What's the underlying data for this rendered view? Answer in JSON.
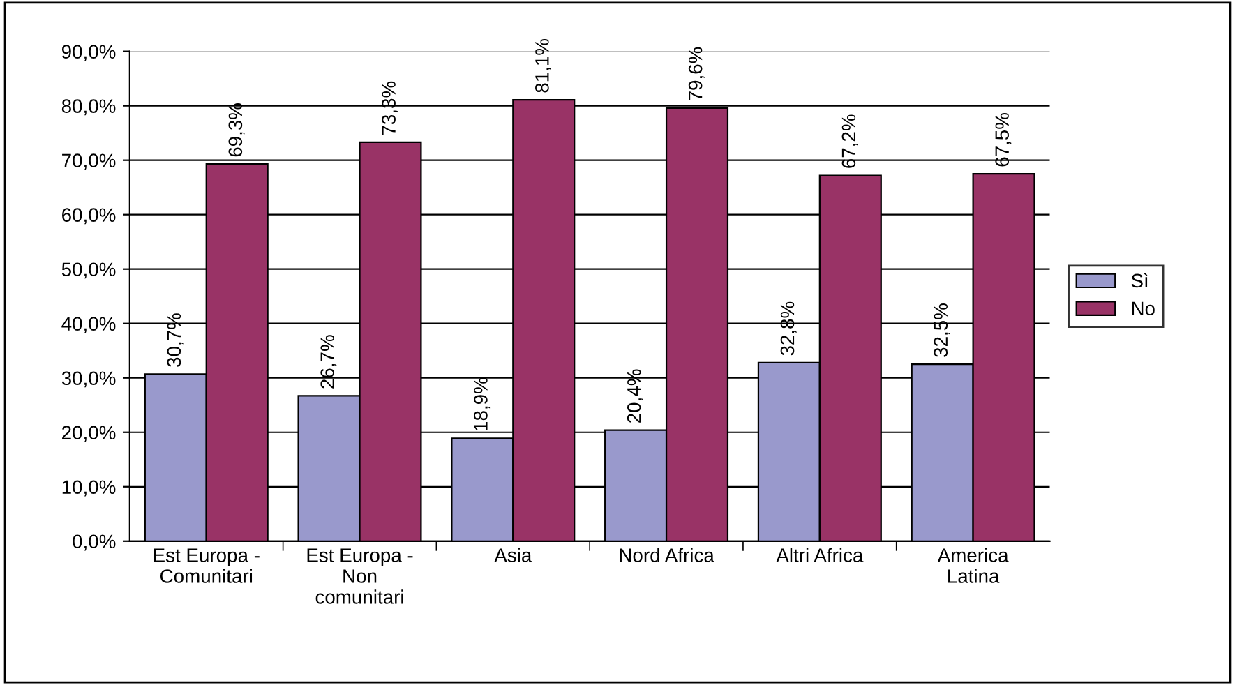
{
  "chart_data": {
    "type": "bar",
    "categories": [
      "Est Europa -\nComunitari",
      "Est Europa -\nNon\ncomunitari",
      "Asia",
      "Nord Africa",
      "Altri Africa",
      "America\nLatina"
    ],
    "series": [
      {
        "name": "Sì",
        "color": "#9999cc",
        "values": [
          30.7,
          26.7,
          18.9,
          20.4,
          32.8,
          32.5
        ],
        "value_labels": [
          "30,7%",
          "26,7%",
          "18,9%",
          "20,4%",
          "32,8%",
          "32,5%"
        ]
      },
      {
        "name": "No",
        "color": "#993366",
        "values": [
          69.3,
          73.3,
          81.1,
          79.6,
          67.2,
          67.5
        ],
        "value_labels": [
          "69,3%",
          "73,3%",
          "81,1%",
          "79,6%",
          "67,2%",
          "67,5%"
        ]
      }
    ],
    "ylim": [
      0,
      90
    ],
    "yticks": [
      {
        "value": 0,
        "label": "0,0%"
      },
      {
        "value": 10,
        "label": "10,0%"
      },
      {
        "value": 20,
        "label": "20,0%"
      },
      {
        "value": 30,
        "label": "30,0%"
      },
      {
        "value": 40,
        "label": "40,0%"
      },
      {
        "value": 50,
        "label": "50,0%"
      },
      {
        "value": 60,
        "label": "60,0%"
      },
      {
        "value": 70,
        "label": "70,0%"
      },
      {
        "value": 80,
        "label": "80,0%"
      },
      {
        "value": 90,
        "label": "90,0%"
      }
    ],
    "grid": "y",
    "legend": "right"
  }
}
